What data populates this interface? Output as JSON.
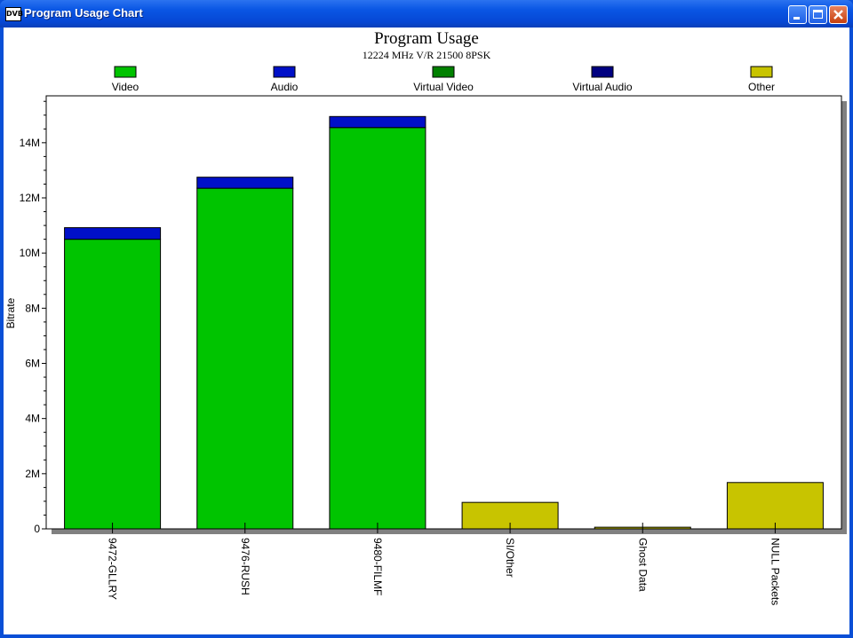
{
  "window": {
    "title": "Program Usage Chart",
    "icon_text": "DVB",
    "controls": [
      "minimize-icon",
      "maximize-icon",
      "close-icon"
    ]
  },
  "colors": {
    "title_bar": "#0a56e4",
    "video": "#00c400",
    "audio": "#0010c8",
    "virtual_video": "#008000",
    "virtual_audio": "#000080",
    "other": "#c8c400",
    "shadow": "#808080"
  },
  "chart_data": {
    "type": "bar",
    "stacked": true,
    "title": "Program Usage",
    "subtitle": "12224 MHz V/R 21500 8PSK",
    "ylabel": "Bitrate",
    "xlabel": "",
    "ylim": [
      0,
      15700000
    ],
    "yticks": [
      0,
      2000000,
      4000000,
      6000000,
      8000000,
      10000000,
      12000000,
      14000000
    ],
    "ytick_labels": [
      "0",
      "2M",
      "4M",
      "6M",
      "8M",
      "10M",
      "12M",
      "14M"
    ],
    "legend": [
      "Video",
      "Audio",
      "Virtual Video",
      "Virtual Audio",
      "Other"
    ],
    "legend_position": "top",
    "grid": false,
    "categories": [
      "9472-GLLRY",
      "9476-RUSH",
      "9480-FILMF",
      "SI/Other",
      "Ghost Data",
      "NULL Packets"
    ],
    "series": [
      {
        "name": "Video",
        "values": [
          10500000,
          12350000,
          14550000,
          0,
          0,
          0
        ]
      },
      {
        "name": "Audio",
        "values": [
          420000,
          400000,
          400000,
          0,
          0,
          0
        ]
      },
      {
        "name": "Virtual Video",
        "values": [
          0,
          0,
          0,
          0,
          0,
          0
        ]
      },
      {
        "name": "Virtual Audio",
        "values": [
          0,
          0,
          0,
          0,
          0,
          0
        ]
      },
      {
        "name": "Other",
        "values": [
          0,
          0,
          0,
          960000,
          60000,
          1680000
        ]
      }
    ]
  }
}
